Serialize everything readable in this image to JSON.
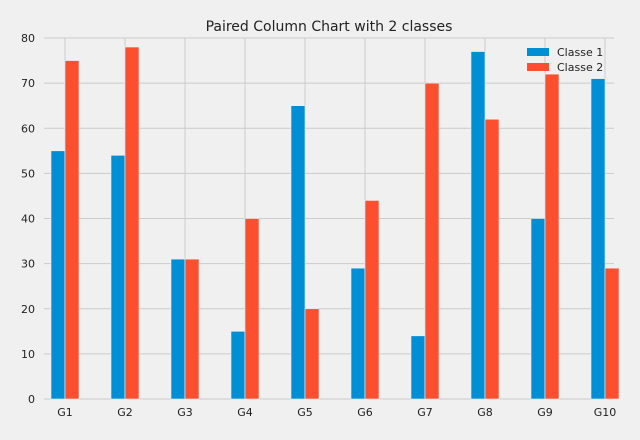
{
  "chart_data": {
    "type": "bar",
    "title": "Paired Column Chart with 2 classes",
    "xlabel": "",
    "ylabel": "",
    "categories": [
      "G1",
      "G2",
      "G3",
      "G4",
      "G5",
      "G6",
      "G7",
      "G8",
      "G9",
      "G10"
    ],
    "series": [
      {
        "name": "Classe 1",
        "color": "#008fd5",
        "values": [
          55,
          54,
          31,
          15,
          65,
          29,
          14,
          77,
          40,
          71
        ]
      },
      {
        "name": "Classe 2",
        "color": "#fc4f30",
        "values": [
          75,
          78,
          31,
          40,
          20,
          44,
          70,
          62,
          72,
          29
        ]
      }
    ],
    "ylim": [
      0,
      80
    ],
    "yticks": [
      0,
      10,
      20,
      30,
      40,
      50,
      60,
      70,
      80
    ],
    "grid": true,
    "legend_position": "top-right",
    "colors": {
      "background": "#f0f0f0",
      "grid": "#cbcbcb",
      "text": "#222222"
    }
  }
}
